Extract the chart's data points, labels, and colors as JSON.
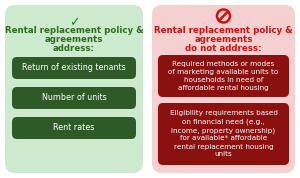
{
  "left_bg": "#ceeace",
  "right_bg": "#f5d0d0",
  "left_box_color": "#2d5a27",
  "right_box_color": "#8b1010",
  "left_title_color": "#2d6e20",
  "right_title_color": "#cc1111",
  "left_title_line1": "Rental replacement policy &",
  "left_title_line2": "agreements",
  "left_title_line3": "address:",
  "right_title_line1": "Rental replacement policy &",
  "right_title_line2": "agreements",
  "right_title_line3": "do not address:",
  "left_items": [
    "Return of existing tenants",
    "Number of units",
    "Rent rates"
  ],
  "right_items": [
    "Required methods or modes\nof marketing available units to\nhouseholds in need of\naffordable rental housing",
    "Eligibility requirements based\non financial need (e.g.,\nincome, property ownership)\nfor available* affordable\nrental replacement housing\nunits"
  ],
  "text_color_white": "#ffffff",
  "checkmark_color": "#2d8020",
  "no_entry_color": "#cc1111",
  "bg_color": "#ffffff",
  "fig_w": 3.0,
  "fig_h": 1.78,
  "dpi": 100
}
